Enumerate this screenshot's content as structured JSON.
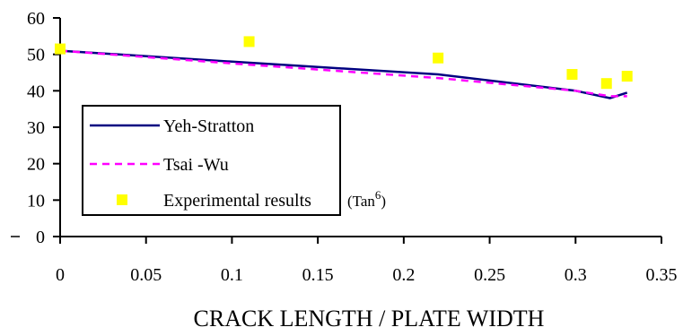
{
  "chart_data": {
    "type": "line",
    "xlabel": "CRACK LENGTH / PLATE WIDTH",
    "ylabel": "",
    "xlim": [
      0,
      0.35
    ],
    "ylim": [
      0,
      60
    ],
    "x_ticks": [
      "0",
      "0.05",
      "0.1",
      "0.15",
      "0.2",
      "0.25",
      "0.3",
      "0.35"
    ],
    "y_ticks": [
      "0",
      "10",
      "20",
      "30",
      "40",
      "50",
      "60"
    ],
    "x_tick_values": [
      0,
      0.05,
      0.1,
      0.15,
      0.2,
      0.25,
      0.3,
      0.35
    ],
    "y_tick_values": [
      0,
      10,
      20,
      30,
      40,
      50,
      60
    ],
    "grid": false,
    "legend_position": "bottom-left",
    "series": [
      {
        "name": "Yeh-Stratton",
        "style": "solid",
        "color": "#000080",
        "x": [
          0,
          0.1,
          0.22,
          0.3,
          0.32,
          0.33
        ],
        "y": [
          51,
          48,
          44.5,
          40,
          38,
          39.5
        ]
      },
      {
        "name": "Tsai -Wu",
        "style": "dashed",
        "color": "#ff00ff",
        "x": [
          0,
          0.1,
          0.22,
          0.3,
          0.32,
          0.33
        ],
        "y": [
          51,
          47.5,
          43.5,
          40,
          38.5,
          38.5
        ]
      },
      {
        "name": "Experimental results",
        "name_suffix": "(Tan",
        "name_superscript": "6",
        "name_close": ")",
        "style": "markers",
        "color": "#ffff00",
        "x": [
          0,
          0.11,
          0.22,
          0.298,
          0.318,
          0.33
        ],
        "y": [
          51.5,
          53.5,
          49,
          44.5,
          42,
          44
        ]
      }
    ]
  }
}
